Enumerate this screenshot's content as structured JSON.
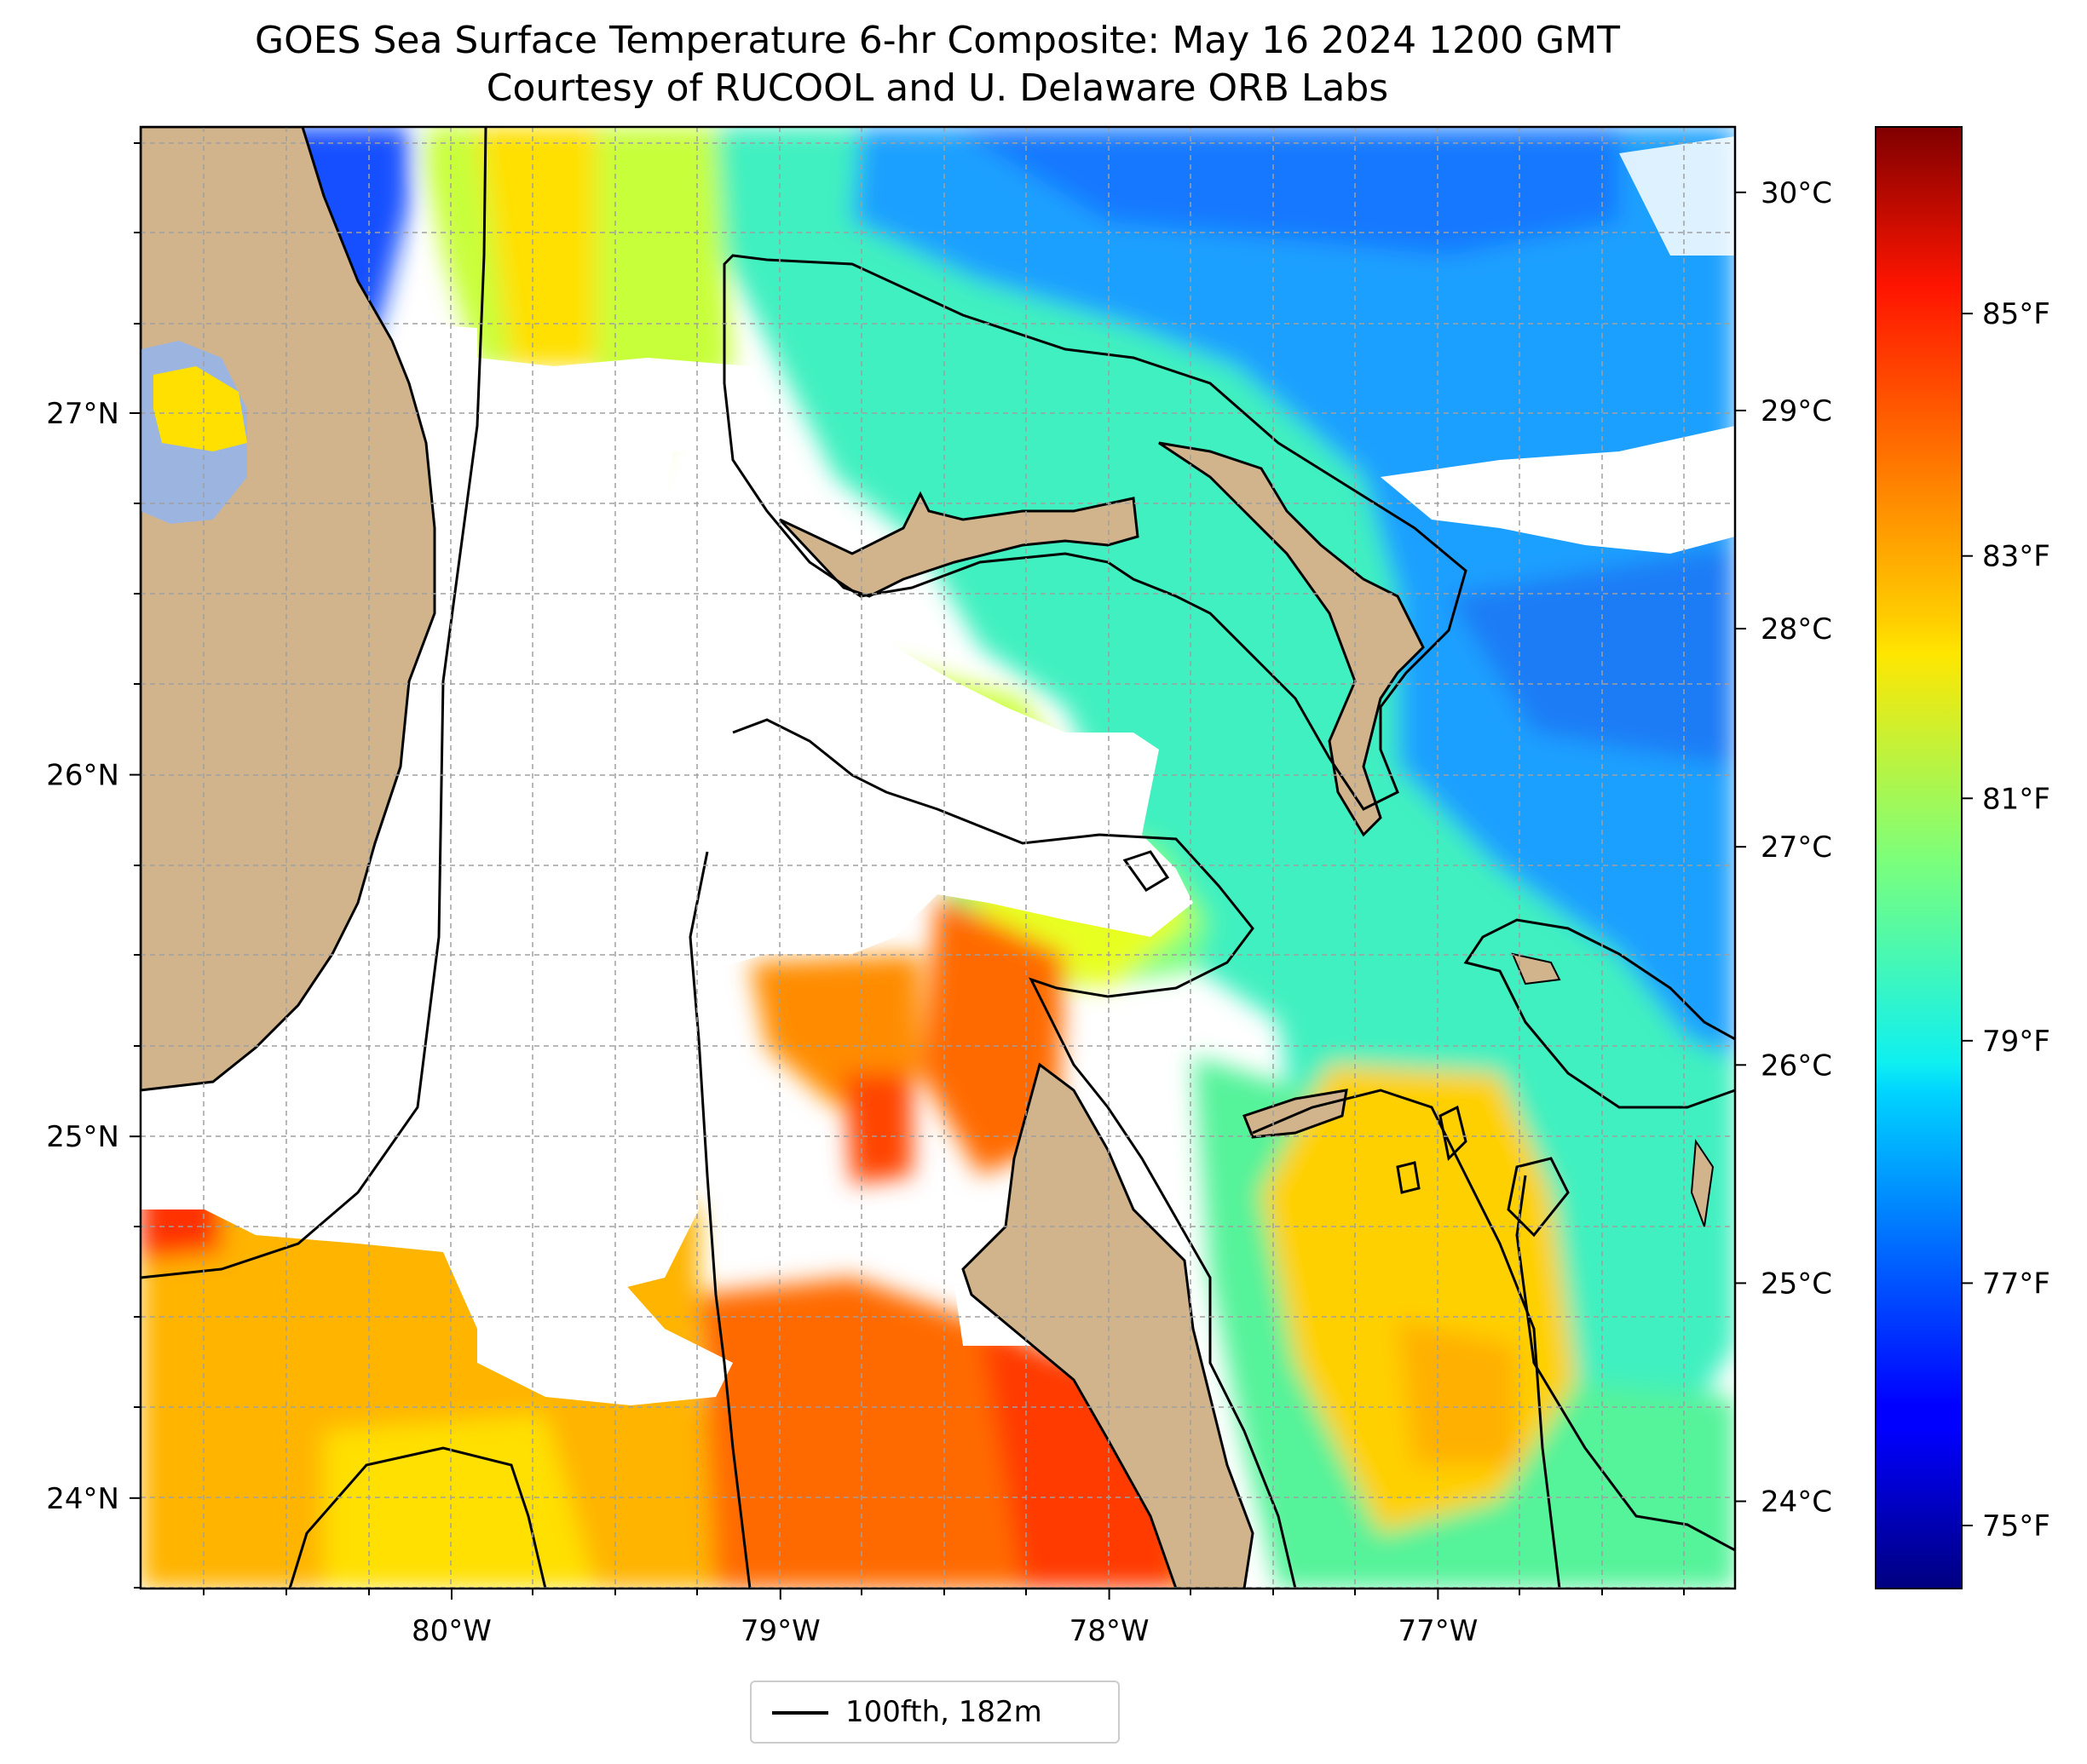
{
  "title": {
    "line1": "GOES Sea Surface Temperature 6-hr Composite: May 16 2024 1200 GMT",
    "line2": "Courtesy of RUCOOL and U. Delaware ORB Labs"
  },
  "map": {
    "lon_range": [
      -81.0,
      -76.2
    ],
    "lat_range": [
      23.75,
      27.8
    ],
    "longitude_ticks": [
      {
        "value": -80,
        "label": "80°W"
      },
      {
        "value": -79,
        "label": "79°W"
      },
      {
        "value": -78,
        "label": "78°W"
      },
      {
        "value": -77,
        "label": "77°W"
      }
    ],
    "latitude_ticks": [
      {
        "value": 27,
        "label": "27°N"
      },
      {
        "value": 26,
        "label": "26°N"
      },
      {
        "value": 25,
        "label": "25°N"
      },
      {
        "value": 24,
        "label": "24°N"
      }
    ],
    "gridlines": true,
    "land_color": "#d2b48c",
    "no_data_color": "#ffffff"
  },
  "colorbar": {
    "colormap": "jet",
    "range_c": [
      23.6,
      30.3
    ],
    "celsius_ticks": [
      {
        "value": 30,
        "label": "30°C"
      },
      {
        "value": 29,
        "label": "29°C"
      },
      {
        "value": 28,
        "label": "28°C"
      },
      {
        "value": 27,
        "label": "27°C"
      },
      {
        "value": 26,
        "label": "26°C"
      },
      {
        "value": 25,
        "label": "25°C"
      },
      {
        "value": 24,
        "label": "24°C"
      }
    ],
    "fahrenheit_ticks": [
      {
        "value": 85,
        "label": "85°F"
      },
      {
        "value": 83,
        "label": "83°F"
      },
      {
        "value": 81,
        "label": "81°F"
      },
      {
        "value": 79,
        "label": "79°F"
      },
      {
        "value": 77,
        "label": "77°F"
      },
      {
        "value": 75,
        "label": "75°F"
      }
    ]
  },
  "legend": {
    "label": "100fth, 182m",
    "line_color": "#000000",
    "location": "below map"
  }
}
